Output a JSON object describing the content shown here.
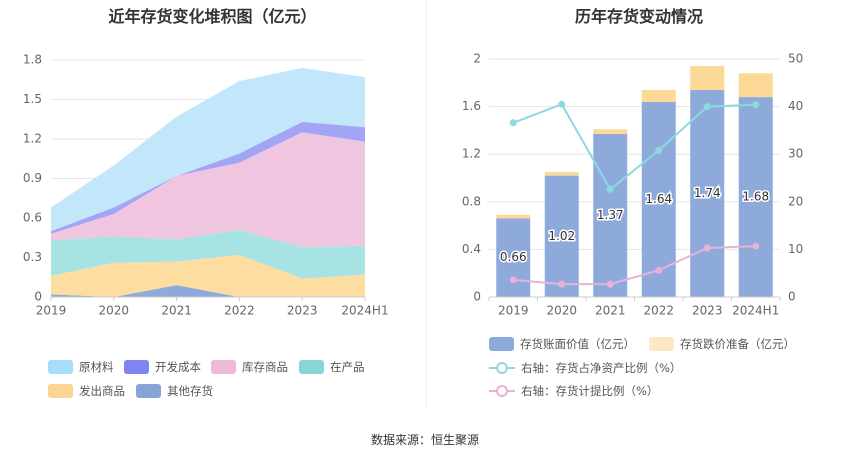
{
  "left_title": "近年存货变化堆积图（亿元）",
  "right_title": "历年存货变动情况",
  "source": "数据来源：恒生聚源",
  "chart_data": [
    {
      "type": "area",
      "stacked": true,
      "title": "近年存货变化堆积图（亿元）",
      "categories": [
        "2019",
        "2020",
        "2021",
        "2022",
        "2023",
        "2024H1"
      ],
      "ylim": [
        0,
        1.8
      ],
      "yticks": [
        "0",
        "0.3",
        "0.6",
        "0.9",
        "1.2",
        "1.5",
        "1.8"
      ],
      "series": [
        {
          "name": "其他存货",
          "color": "#8eaadb",
          "values": [
            0.02,
            0.0,
            0.09,
            0.0,
            0.0,
            0.0
          ]
        },
        {
          "name": "发出商品",
          "color": "#fddda0",
          "values": [
            0.14,
            0.26,
            0.18,
            0.32,
            0.14,
            0.17
          ]
        },
        {
          "name": "在产品",
          "color": "#a8e3e3",
          "values": [
            0.27,
            0.2,
            0.17,
            0.19,
            0.24,
            0.22
          ]
        },
        {
          "name": "库存商品",
          "color": "#f0c5e0",
          "values": [
            0.05,
            0.17,
            0.48,
            0.51,
            0.87,
            0.79
          ]
        },
        {
          "name": "开发成本",
          "color": "#a2a5f6",
          "values": [
            0.02,
            0.05,
            0.0,
            0.07,
            0.08,
            0.11
          ]
        },
        {
          "name": "原材料",
          "color": "#c2e6fa",
          "values": [
            0.18,
            0.32,
            0.45,
            0.55,
            0.41,
            0.38
          ]
        }
      ],
      "legend": [
        {
          "name": "原材料",
          "color": "#a6ddf8"
        },
        {
          "name": "开发成本",
          "color": "#7f84f0"
        },
        {
          "name": "库存商品",
          "color": "#ecb9d9"
        },
        {
          "name": "在产品",
          "color": "#86d6d6"
        },
        {
          "name": "发出商品",
          "color": "#fcd592"
        },
        {
          "name": "其他存货",
          "color": "#88a4d7"
        }
      ]
    },
    {
      "type": "bar",
      "title": "历年存货变动情况",
      "categories": [
        "2019",
        "2020",
        "2021",
        "2022",
        "2023",
        "2024H1"
      ],
      "ylim": [
        0,
        2
      ],
      "yticks": [
        "0",
        "0.4",
        "0.8",
        "1.2",
        "1.6",
        "2"
      ],
      "y2lim": [
        0,
        50
      ],
      "y2ticks": [
        "0",
        "10",
        "20",
        "30",
        "40",
        "50"
      ],
      "series": [
        {
          "name": "存货账面价值（亿元）",
          "type": "bar",
          "color": "#8eaadb",
          "values": [
            0.66,
            1.02,
            1.37,
            1.64,
            1.74,
            1.68
          ],
          "labels": [
            "0.66",
            "1.02",
            "1.37",
            "1.64",
            "1.74",
            "1.68"
          ]
        },
        {
          "name": "存货跌价准备（亿元）",
          "type": "bar-stack",
          "color": "#fdd997",
          "values": [
            0.03,
            0.03,
            0.04,
            0.1,
            0.2,
            0.2
          ]
        },
        {
          "name": "右轴：存货占净资产比例（%）",
          "type": "line",
          "axis": "right",
          "color": "#8ed8e0",
          "values": [
            36.6,
            40.5,
            22.6,
            30.8,
            40,
            40.4
          ]
        },
        {
          "name": "右轴：存货计提比例（%）",
          "type": "line",
          "axis": "right",
          "color": "#e8b2d8",
          "values": [
            3.6,
            2.7,
            2.7,
            5.6,
            10.3,
            10.7
          ]
        }
      ],
      "legend": [
        {
          "name": "存货账面价值（亿元）",
          "color": "#8eaadb"
        },
        {
          "name": "存货跌价准备（亿元）",
          "color": "#fde8c4"
        },
        {
          "name": "右轴：存货占净资产比例（%）",
          "color": "#8ed8e0"
        },
        {
          "name": "右轴：存货计提比例（%）",
          "color": "#e8b2d8"
        }
      ]
    }
  ]
}
